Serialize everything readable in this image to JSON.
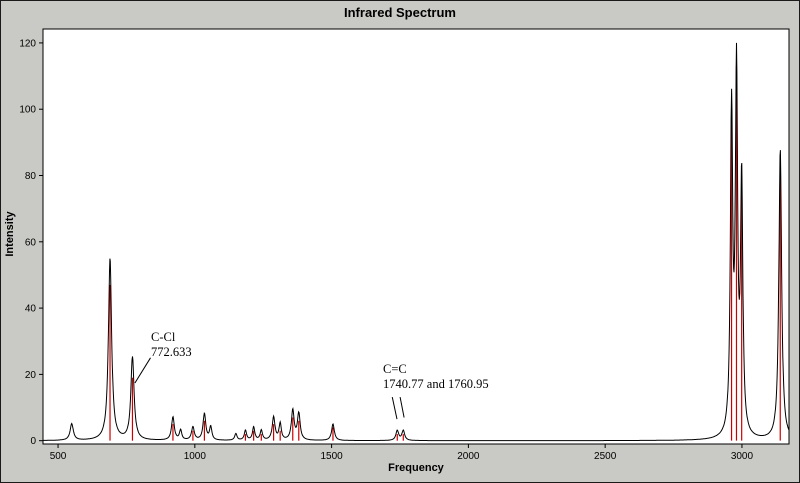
{
  "title": "Infrared Spectrum",
  "xlabel": "Frequency",
  "ylabel": "Intensity",
  "chart_data": {
    "type": "line",
    "title": "Infrared Spectrum",
    "xlabel": "Frequency",
    "ylabel": "Intensity",
    "xlim": [
      445,
      3172
    ],
    "ylim": [
      -1,
      124.2
    ],
    "x_ticks": [
      500,
      1000,
      1500,
      2000,
      2500,
      3000
    ],
    "y_ticks": [
      0,
      20,
      40,
      60,
      80,
      100,
      120
    ],
    "grid": false,
    "legend": "none",
    "curve_color": "#000000",
    "stick_color": "#cc0000",
    "plot_bg": "#ffffff",
    "chrome_bg": "#c9c9c5",
    "peaks": [
      {
        "freq": 550,
        "intensity": 5,
        "width": 7,
        "stick": 0
      },
      {
        "freq": 690,
        "intensity": 55,
        "width": 7,
        "stick": 47
      },
      {
        "freq": 772,
        "intensity": 25,
        "width": 7,
        "stick": 19
      },
      {
        "freq": 920,
        "intensity": 7,
        "width": 6,
        "stick": 5
      },
      {
        "freq": 948,
        "intensity": 3,
        "width": 5,
        "stick": 0
      },
      {
        "freq": 993,
        "intensity": 4,
        "width": 6,
        "stick": 3
      },
      {
        "freq": 1035,
        "intensity": 8,
        "width": 6,
        "stick": 6
      },
      {
        "freq": 1058,
        "intensity": 4,
        "width": 5,
        "stick": 0
      },
      {
        "freq": 1150,
        "intensity": 2,
        "width": 5,
        "stick": 0
      },
      {
        "freq": 1185,
        "intensity": 3,
        "width": 5,
        "stick": 2
      },
      {
        "freq": 1215,
        "intensity": 4,
        "width": 5,
        "stick": 3
      },
      {
        "freq": 1243,
        "intensity": 3,
        "width": 5,
        "stick": 2
      },
      {
        "freq": 1288,
        "intensity": 7,
        "width": 6,
        "stick": 5
      },
      {
        "freq": 1312,
        "intensity": 5,
        "width": 5,
        "stick": 3
      },
      {
        "freq": 1358,
        "intensity": 9,
        "width": 6,
        "stick": 7
      },
      {
        "freq": 1380,
        "intensity": 8,
        "width": 6,
        "stick": 6
      },
      {
        "freq": 1505,
        "intensity": 5,
        "width": 6,
        "stick": 4
      },
      {
        "freq": 1740,
        "intensity": 3,
        "width": 6,
        "stick": 2
      },
      {
        "freq": 1762,
        "intensity": 3,
        "width": 6,
        "stick": 2
      },
      {
        "freq": 2962,
        "intensity": 97,
        "width": 5,
        "stick": 100
      },
      {
        "freq": 2980,
        "intensity": 108,
        "width": 5,
        "stick": 113
      },
      {
        "freq": 2999,
        "intensity": 76,
        "width": 5,
        "stick": 80
      },
      {
        "freq": 3140,
        "intensity": 88,
        "width": 6,
        "stick": 82
      }
    ],
    "annotations": [
      {
        "lines": [
          "C-Cl",
          "772.633"
        ],
        "x": 840,
        "y": 30.1,
        "box": false,
        "leaders": [
          [
            838,
            25,
            781,
            17.4
          ]
        ]
      },
      {
        "lines": [
          "C=C",
          "1740.77 and 1760.95"
        ],
        "x": 1688,
        "y": 20.4,
        "box": true,
        "leaders": [
          [
            1717,
            15,
            1739,
            6.5
          ],
          [
            1746,
            15,
            1765,
            7
          ]
        ]
      }
    ]
  }
}
